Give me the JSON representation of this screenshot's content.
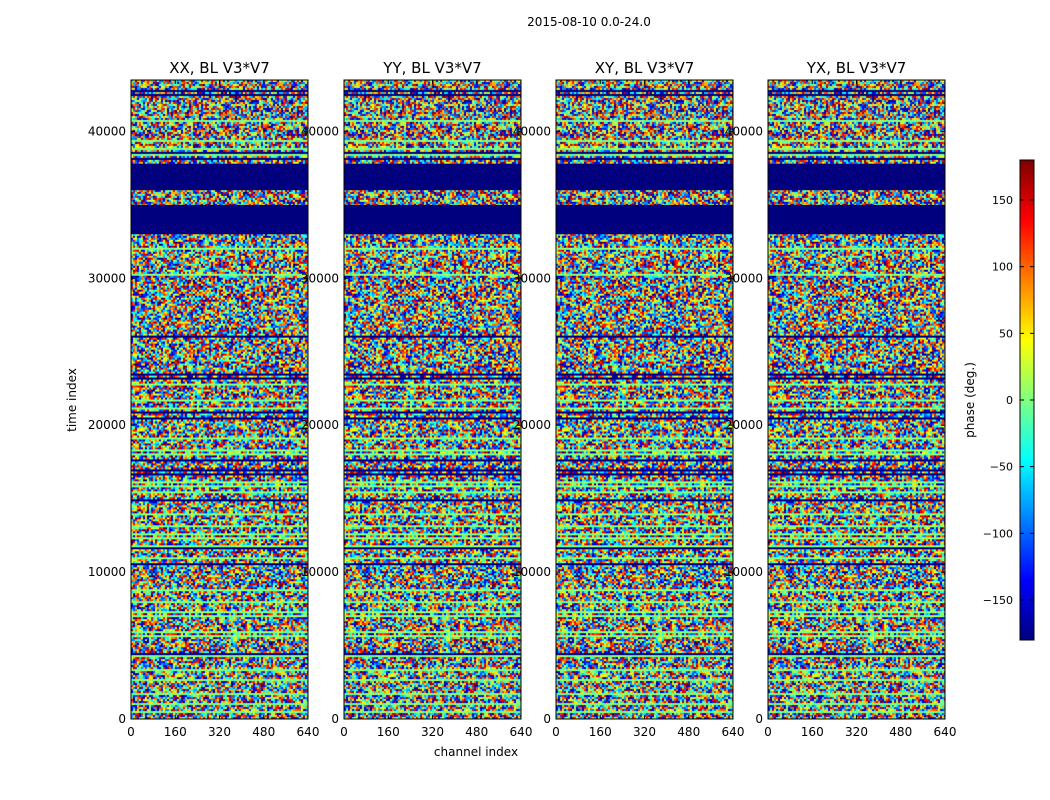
{
  "chart_data": {
    "type": "heatmap",
    "suptitle": "2015-08-10 0.0-24.0",
    "xlabel": "channel index",
    "ylabel": "time index",
    "xlim": [
      0,
      640
    ],
    "ylim": [
      0,
      43500
    ],
    "xticks": [
      0,
      160,
      320,
      480,
      640
    ],
    "yticks": [
      0,
      10000,
      20000,
      30000,
      40000
    ],
    "panels": [
      {
        "title": "XX, BL V3*V7"
      },
      {
        "title": "YY, BL V3*V7"
      },
      {
        "title": "XY, BL V3*V7"
      },
      {
        "title": "YX, BL V3*V7"
      }
    ],
    "colorbar": {
      "label": "phase (deg.)",
      "range": [
        -180,
        180
      ],
      "ticks": [
        -150,
        -100,
        -50,
        0,
        50,
        100,
        150
      ],
      "tick_labels": [
        "−150",
        "−100",
        "−50",
        "0",
        "50",
        "100",
        "150"
      ],
      "colormap": "jet"
    }
  }
}
